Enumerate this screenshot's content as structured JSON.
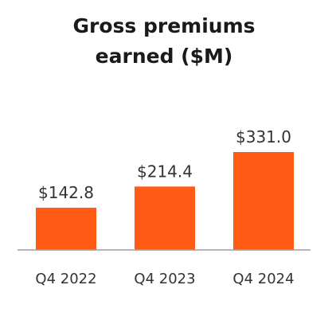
{
  "chart_data": {
    "type": "bar",
    "title_lines": [
      "Gross premiums",
      "earned ($M)"
    ],
    "categories": [
      "Q4 2022",
      "Q4 2023",
      "Q4 2024"
    ],
    "values": [
      142.8,
      214.4,
      331.0
    ],
    "data_labels": [
      "$142.8",
      "$214.4",
      "$331.0"
    ],
    "bar_color": "#ff5a16",
    "baseline_color": "#9e9e9e",
    "grid": false,
    "legend": "none"
  }
}
